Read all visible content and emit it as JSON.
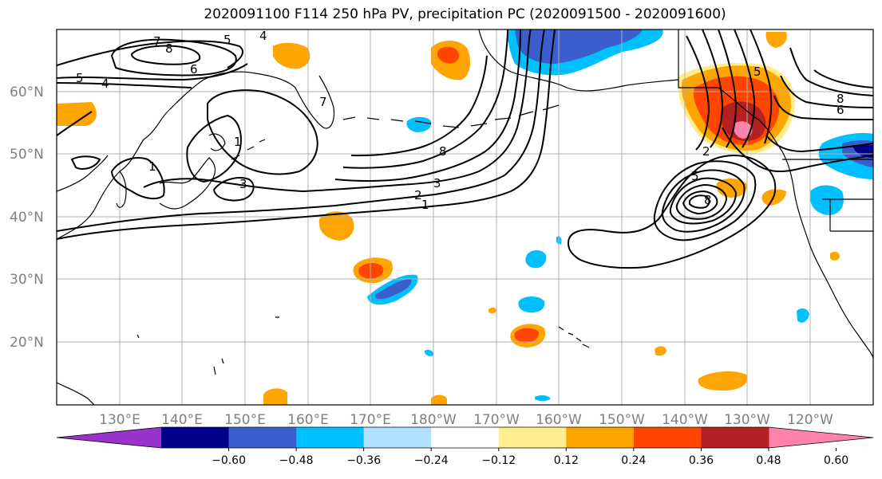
{
  "title": "2020091100 F114 250 hPa PV, precipitation PC (2020091500 - 2020091600)",
  "lat_labels": [
    "60°N",
    "50°N",
    "40°N",
    "30°N",
    "20°N"
  ],
  "lon_labels": [
    "130°E",
    "140°E",
    "150°E",
    "160°E",
    "170°E",
    "180°W",
    "170°W",
    "160°W",
    "150°W",
    "140°W",
    "130°W",
    "120°W"
  ],
  "colorbar": {
    "ticks": [
      "−0.60",
      "−0.48",
      "−0.36",
      "−0.24",
      "−0.12",
      "0.12",
      "0.24",
      "0.36",
      "0.48",
      "0.60"
    ],
    "colors": [
      "#9a32cd",
      "#00008b",
      "#3a5fcd",
      "#00bfff",
      "#b0e2ff",
      "#ffffff",
      "#ffec8b",
      "#ffa500",
      "#ff4500",
      "#b22222",
      "#ff82ab"
    ]
  },
  "contour_labels": {
    "top_left_5": "5",
    "top_left_7": "7",
    "top_left_8": "8",
    "top_left_6": "6",
    "left_5": "5",
    "left_4": "4",
    "top_4": "4",
    "mid_1": "1",
    "mid_7": "7",
    "mid_1b": "1",
    "mid_3": "3",
    "jet_8": "8",
    "jet_3": "3",
    "jet_2": "2",
    "jet_1": "1",
    "low_2": "2",
    "low_5": "5",
    "low_8": "8",
    "ne_5": "5",
    "ne_8": "8",
    "ne_6": "6"
  }
}
